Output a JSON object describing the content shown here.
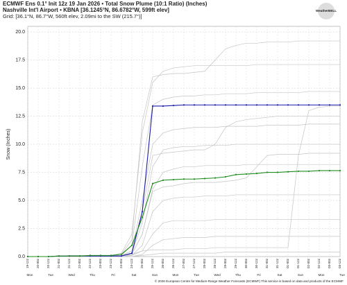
{
  "chart_data": {
    "type": "line",
    "title": "ECMWF Ens 0.1° Init 12z 19 Jan 2026 • Total Snow Plume (10:1 Ratio) (Inches)",
    "subtitle": "Nashville Int'l Airport • KBNA [36.1245°N, 86.6782°W, 599ft elev]",
    "grid_info": "Grid: [36.1°N, 86.7°W, 560ft elev, 2.09mi to the SW (215.7°)]",
    "logo": "WeatherBELL",
    "ylabel": "Snow (Inches)",
    "footer": "© 2026 European Centre for Medium-Range Weather Forecasts (ECMWF) This service is based on data and products of the ECMWF",
    "categories": [
      "19-12z",
      "20-00z",
      "20-12z",
      "21-00z",
      "21-12z",
      "22-00z",
      "22-12z",
      "23-00z",
      "23-12z",
      "24-00z",
      "24-12z",
      "25-00z",
      "25-12z",
      "26-00z",
      "26-12z",
      "27-00z",
      "27-12z",
      "28-00z",
      "28-12z",
      "29-00z",
      "29-12z",
      "30-00z",
      "30-12z",
      "31-00z",
      "31-12z",
      "01-00z",
      "01-12z",
      "02-00z",
      "02-12z",
      "03-00z",
      "03-12z"
    ],
    "days": [
      "Mon",
      "Tue",
      "Wed",
      "Thu",
      "Fri",
      "Sat",
      "Sun",
      "Mon",
      "Tue",
      "Wed",
      "Thu",
      "Fri",
      "Sat",
      "Sun",
      "Mon",
      "Tue"
    ],
    "ylim": [
      0,
      20.5
    ],
    "yticks": [
      {
        "value": 0,
        "label": "0.0"
      },
      {
        "value": 2.5,
        "label": "2.5"
      },
      {
        "value": 5,
        "label": "5.0"
      },
      {
        "value": 7.5,
        "label": "7.5"
      },
      {
        "value": 10,
        "label": "10.0"
      },
      {
        "value": 12.5,
        "label": "12.5"
      },
      {
        "value": 15,
        "label": "15.0"
      },
      {
        "value": 17.5,
        "label": "17.5"
      },
      {
        "value": 20,
        "label": "20.0"
      }
    ],
    "grid": true,
    "series": [
      {
        "color": "#c4c4c4",
        "values": [
          0,
          0,
          0,
          0,
          0.1,
          0.1,
          0.1,
          0.1,
          0.1,
          0.2,
          1.5,
          12,
          16,
          16.2,
          16.3,
          16.3,
          16.4,
          16.5,
          17.5,
          18.5,
          18.8,
          19,
          19,
          19.1,
          19.1,
          19.1,
          19.2,
          19.2,
          19.2,
          19.2,
          19.2
        ]
      },
      {
        "color": "#c4c4c4",
        "values": [
          0,
          0,
          0,
          0,
          0,
          0,
          0.1,
          0.1,
          0.1,
          0.3,
          2,
          11,
          15.5,
          16.5,
          16.8,
          16.9,
          17,
          17,
          17,
          17,
          17,
          17,
          17.1,
          17.1,
          17.1,
          17.1,
          17.1,
          17.1,
          17.1,
          17.1,
          17.1
        ]
      },
      {
        "color": "#c4c4c4",
        "values": [
          0,
          0,
          0,
          0,
          0,
          0,
          0,
          0,
          0.1,
          0.1,
          1,
          8,
          13.5,
          14,
          14.2,
          14.3,
          14.3,
          14.4,
          14.4,
          14.5,
          14.5,
          14.5,
          14.6,
          14.6,
          14.6,
          14.6,
          14.6,
          14.7,
          14.7,
          14.7,
          14.7
        ]
      },
      {
        "color": "#c4c4c4",
        "values": [
          0,
          0,
          0,
          0,
          0,
          0,
          0,
          0.1,
          0.1,
          0.1,
          0.5,
          5,
          10,
          11,
          11.3,
          11.4,
          11.5,
          11.5,
          11.5,
          11.6,
          11.6,
          11.6,
          11.6,
          11.7,
          11.7,
          11.7,
          11.7,
          11.8,
          11.8,
          11.8,
          11.8
        ]
      },
      {
        "color": "#c4c4c4",
        "values": [
          0,
          0,
          0,
          0,
          0,
          0,
          0,
          0,
          0,
          0.1,
          0.2,
          0.5,
          0.6,
          0.6,
          0.6,
          0.7,
          0.7,
          0.7,
          0.8,
          0.8,
          0.8,
          0.8,
          0.8,
          0.8,
          0.8,
          0.8,
          9,
          13,
          13.3,
          13.4,
          13.4
        ]
      },
      {
        "color": "#c4c4c4",
        "values": [
          0,
          0,
          0,
          0,
          0,
          0,
          0.1,
          0.1,
          0.1,
          0.1,
          0.3,
          3,
          8,
          9.5,
          9.7,
          9.8,
          9.8,
          9.9,
          9.9,
          9.9,
          10,
          10,
          10,
          10,
          10,
          10,
          10,
          10,
          10,
          10,
          10
        ]
      },
      {
        "color": "#c4c4c4",
        "values": [
          0,
          0,
          0,
          0,
          0,
          0,
          0,
          0,
          0.1,
          0.1,
          0.2,
          2,
          6,
          7.5,
          7.8,
          8,
          8,
          8.1,
          8.1,
          8.1,
          8.1,
          8.2,
          8.2,
          8.2,
          8.2,
          8.2,
          8.2,
          8.2,
          8.2,
          8.2,
          8.2
        ]
      },
      {
        "color": "#c4c4c4",
        "values": [
          0,
          0,
          0,
          0,
          0,
          0,
          0,
          0,
          0,
          0.1,
          0.1,
          1,
          4,
          5,
          5.2,
          5.3,
          5.3,
          5.4,
          5.4,
          5.4,
          5.5,
          5.5,
          5.5,
          5.5,
          5.5,
          5.5,
          5.5,
          5.5,
          5.5,
          5.5,
          5.5
        ]
      },
      {
        "color": "#c4c4c4",
        "values": [
          0,
          0,
          0,
          0,
          0,
          0,
          0,
          0,
          0,
          0,
          0.1,
          0.5,
          2,
          3,
          3.2,
          3.2,
          3.2,
          3.2,
          3.3,
          3.3,
          3.3,
          3.3,
          3.3,
          3.3,
          3.3,
          3.3,
          3.3,
          3.3,
          3.3,
          3.3,
          3.3
        ]
      },
      {
        "color": "#c4c4c4",
        "values": [
          0,
          0,
          0,
          0,
          0,
          0,
          0,
          0,
          0,
          0,
          0,
          0.2,
          1,
          1.5,
          1.6,
          1.7,
          1.7,
          1.7,
          1.8,
          1.8,
          1.8,
          1.8,
          1.8,
          1.8,
          1.8,
          1.8,
          1.8,
          1.8,
          1.8,
          1.8,
          1.8
        ]
      },
      {
        "color": "#c4c4c4",
        "values": [
          0,
          0,
          0,
          0,
          0,
          0,
          0,
          0,
          0,
          0,
          0,
          0.1,
          0.2,
          0.3,
          0.3,
          0.3,
          0.3,
          0.3,
          0.3,
          0.4,
          0.4,
          0.4,
          0.4,
          0.4,
          0.4,
          0.4,
          0.4,
          0.4,
          0.4,
          0.4,
          0.4
        ]
      },
      {
        "color": "#c4c4c4",
        "values": [
          0,
          0,
          0,
          0,
          0,
          0,
          0,
          0,
          0.1,
          0.1,
          0.5,
          4,
          9,
          9.2,
          9.3,
          9.4,
          9.5,
          9.5,
          10,
          11.5,
          12,
          12.2,
          12.3,
          12.4,
          12.5,
          12.5,
          12.5,
          12.5,
          12.5,
          12.5,
          12.5
        ]
      },
      {
        "color": "#c4c4c4",
        "values": [
          0,
          0,
          0,
          0,
          0,
          0,
          0,
          0,
          0,
          0.1,
          0.2,
          2,
          5.8,
          6.2,
          6.3,
          6.5,
          6.6,
          6.6,
          6.6,
          6.7,
          6.8,
          7,
          8,
          9,
          9.1,
          9.1,
          9.1,
          9.2,
          9.2,
          9.2,
          9.2
        ]
      },
      {
        "color": "#1a1aa8",
        "values": [
          0,
          0,
          0,
          0.05,
          0.05,
          0.05,
          0.05,
          0.05,
          0.05,
          0.05,
          0.3,
          4,
          13.4,
          13.4,
          13.45,
          13.5,
          13.5,
          13.5,
          13.5,
          13.5,
          13.5,
          13.5,
          13.5,
          13.5,
          13.5,
          13.5,
          13.5,
          13.5,
          13.5,
          13.5,
          13.5
        ]
      },
      {
        "color": "#1e8c1e",
        "values": [
          0,
          0,
          0,
          0.05,
          0.05,
          0.05,
          0.1,
          0.1,
          0.1,
          0.2,
          1,
          3.5,
          6.5,
          6.8,
          6.85,
          6.9,
          6.9,
          6.95,
          7,
          7.1,
          7.3,
          7.35,
          7.4,
          7.5,
          7.5,
          7.55,
          7.6,
          7.6,
          7.65,
          7.65,
          7.65
        ]
      }
    ]
  }
}
